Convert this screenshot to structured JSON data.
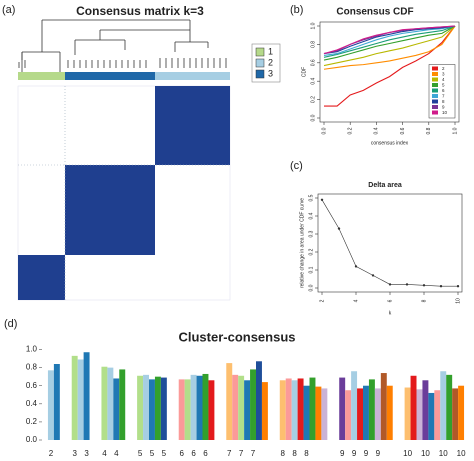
{
  "chart_data": [
    {
      "type": "heatmap",
      "panel_label": "(a)",
      "title": "Consensus matrix k=3",
      "legend": [
        {
          "name": "1",
          "color": "#b5d98a"
        },
        {
          "name": "2",
          "color": "#a6cee3"
        },
        {
          "name": "3",
          "color": "#1f68a8"
        }
      ]
    },
    {
      "type": "line",
      "panel_label": "(b)",
      "title": "Consensus CDF",
      "xlabel": "consensus index",
      "ylabel": "CDF",
      "x": [
        0,
        0.1,
        0.2,
        0.3,
        0.4,
        0.5,
        0.6,
        0.7,
        0.8,
        0.9,
        1.0
      ],
      "xlim": [
        0,
        1
      ],
      "ylim": [
        0,
        1
      ],
      "xticks": [
        {
          "value": 0,
          "label": "0.0"
        },
        {
          "value": 0.2,
          "label": "0.2"
        },
        {
          "value": 0.4,
          "label": "0.4"
        },
        {
          "value": 0.6,
          "label": "0.6"
        },
        {
          "value": 0.8,
          "label": "0.8"
        },
        {
          "value": 1,
          "label": "1.0"
        }
      ],
      "yticks": [
        {
          "value": 0,
          "label": "0.0"
        },
        {
          "value": 0.2,
          "label": "0.2"
        },
        {
          "value": 0.4,
          "label": "0.4"
        },
        {
          "value": 0.6,
          "label": "0.6"
        },
        {
          "value": 0.8,
          "label": "0.8"
        },
        {
          "value": 1,
          "label": "1.0"
        }
      ],
      "legend_position": "lower right",
      "series": [
        {
          "name": "2",
          "color": "#e41a1c",
          "values": [
            0.13,
            0.13,
            0.25,
            0.3,
            0.38,
            0.45,
            0.55,
            0.62,
            0.7,
            0.82,
            1.0
          ]
        },
        {
          "name": "3",
          "color": "#ff8c00",
          "values": [
            0.53,
            0.55,
            0.57,
            0.58,
            0.6,
            0.62,
            0.65,
            0.68,
            0.72,
            0.8,
            1.0
          ]
        },
        {
          "name": "4",
          "color": "#b8b800",
          "values": [
            0.57,
            0.6,
            0.63,
            0.66,
            0.7,
            0.73,
            0.76,
            0.8,
            0.84,
            0.88,
            1.0
          ]
        },
        {
          "name": "5",
          "color": "#33a02c",
          "values": [
            0.63,
            0.66,
            0.7,
            0.74,
            0.78,
            0.81,
            0.84,
            0.87,
            0.9,
            0.92,
            1.0
          ]
        },
        {
          "name": "6",
          "color": "#1b9e77",
          "values": [
            0.66,
            0.69,
            0.73,
            0.77,
            0.81,
            0.85,
            0.88,
            0.91,
            0.93,
            0.95,
            1.0
          ]
        },
        {
          "name": "7",
          "color": "#3fa7d6",
          "values": [
            0.68,
            0.7,
            0.75,
            0.8,
            0.85,
            0.89,
            0.92,
            0.94,
            0.96,
            0.97,
            1.0
          ]
        },
        {
          "name": "8",
          "color": "#1f3f9a",
          "values": [
            0.7,
            0.72,
            0.78,
            0.83,
            0.88,
            0.91,
            0.94,
            0.96,
            0.97,
            0.98,
            1.0
          ]
        },
        {
          "name": "9",
          "color": "#7b3294",
          "values": [
            0.7,
            0.73,
            0.8,
            0.85,
            0.89,
            0.93,
            0.95,
            0.97,
            0.98,
            0.99,
            1.0
          ]
        },
        {
          "name": "10",
          "color": "#d01c8b",
          "values": [
            0.7,
            0.74,
            0.8,
            0.86,
            0.9,
            0.93,
            0.96,
            0.97,
            0.98,
            0.99,
            1.0
          ]
        }
      ]
    },
    {
      "type": "line",
      "panel_label": "(c)",
      "title": "Delta area",
      "xlabel": "k",
      "ylabel": "relative change in area under CDF curve",
      "x": [
        2,
        3,
        4,
        5,
        6,
        7,
        8,
        9,
        10
      ],
      "xlim": [
        2,
        10
      ],
      "ylim": [
        0,
        0.5
      ],
      "markers": true,
      "xticks": [
        2,
        4,
        6,
        8,
        10
      ],
      "yticks": [
        {
          "value": 0,
          "label": "0.0"
        },
        0.1,
        0.2,
        0.3,
        0.4,
        0.5
      ],
      "series": [
        {
          "color": "#333333",
          "values": [
            0.49,
            0.33,
            0.12,
            0.07,
            0.02,
            0.02,
            0.015,
            0.01,
            0.01
          ]
        }
      ]
    },
    {
      "type": "bar",
      "panel_label": "(d)",
      "title": "Cluster-consensus",
      "ylim": [
        0,
        1.05
      ],
      "yticks": [
        {
          "value": 0,
          "label": "0.0"
        },
        {
          "value": 0.2,
          "label": "0.2"
        },
        {
          "value": 0.4,
          "label": "0.4"
        },
        {
          "value": 0.6,
          "label": "0.6"
        },
        {
          "value": 0.8,
          "label": "0.8"
        },
        {
          "value": 1,
          "label": "1.0"
        }
      ],
      "groups": [
        {
          "labels": [
            "2",
            null
          ],
          "values": [
            0.77,
            0.84
          ],
          "colors": [
            "#a6cee3",
            "#1f78b4"
          ]
        },
        {
          "labels": [
            "3",
            null,
            "3"
          ],
          "values": [
            0.93,
            0.89,
            0.97
          ],
          "colors": [
            "#b2df8a",
            "#a6cee3",
            "#1f78b4"
          ]
        },
        {
          "labels": [
            "4",
            null,
            "4",
            null
          ],
          "values": [
            0.81,
            0.8,
            0.68,
            0.78
          ],
          "colors": [
            "#b2df8a",
            "#a6cee3",
            "#1f78b4",
            "#33a02c"
          ]
        },
        {
          "labels": [
            "5",
            null,
            "5",
            null,
            "5"
          ],
          "values": [
            0.71,
            0.72,
            0.67,
            0.7,
            0.69
          ],
          "colors": [
            "#b2df8a",
            "#a6cee3",
            "#1f78b4",
            "#33a02c",
            "#1f4e9a"
          ]
        },
        {
          "labels": [
            "6",
            null,
            "6",
            null,
            "6",
            null
          ],
          "values": [
            0.67,
            0.67,
            0.72,
            0.71,
            0.73,
            0.66
          ],
          "colors": [
            "#fb9a99",
            "#b2df8a",
            "#a6cee3",
            "#1f78b4",
            "#33a02c",
            "#e31a1c"
          ]
        },
        {
          "labels": [
            "7",
            null,
            "7",
            null,
            "7",
            null,
            null
          ],
          "values": [
            0.85,
            0.72,
            0.71,
            0.66,
            0.78,
            0.87,
            0.64
          ],
          "colors": [
            "#fdbf6f",
            "#fb9a99",
            "#b2df8a",
            "#1f78b4",
            "#33a02c",
            "#1f4e9a",
            "#ff7f00"
          ]
        },
        {
          "labels": [
            "8",
            null,
            "8",
            null,
            "8",
            null,
            null,
            null
          ],
          "values": [
            0.66,
            0.68,
            0.66,
            0.68,
            0.6,
            0.69,
            0.59,
            0.57
          ],
          "colors": [
            "#fdbf6f",
            "#fb9a99",
            "#a6cee3",
            "#e31a1c",
            "#1f78b4",
            "#33a02c",
            "#ff7f00",
            "#cab2d6"
          ]
        },
        {
          "labels": [
            "9",
            null,
            "9",
            null,
            "9",
            null,
            "9",
            null,
            null
          ],
          "values": [
            0.69,
            0.55,
            0.76,
            0.57,
            0.6,
            0.67,
            0.57,
            0.74,
            0.6
          ],
          "colors": [
            "#6a3d9a",
            "#fb9a99",
            "#a6cee3",
            "#e31a1c",
            "#1f78b4",
            "#33a02c",
            "#cab2d6",
            "#b15928",
            "#ff7f00"
          ]
        },
        {
          "labels": [
            "10",
            null,
            null,
            "10",
            null,
            null,
            "10",
            null,
            null,
            "10"
          ],
          "values": [
            0.58,
            0.71,
            0.56,
            0.66,
            0.52,
            0.55,
            0.76,
            0.72,
            0.57,
            0.6
          ],
          "colors": [
            "#fdbf6f",
            "#e31a1c",
            "#cab2d6",
            "#6a3d9a",
            "#1f78b4",
            "#fb9a99",
            "#a6cee3",
            "#33a02c",
            "#b15928",
            "#ff7f00"
          ]
        }
      ]
    }
  ]
}
